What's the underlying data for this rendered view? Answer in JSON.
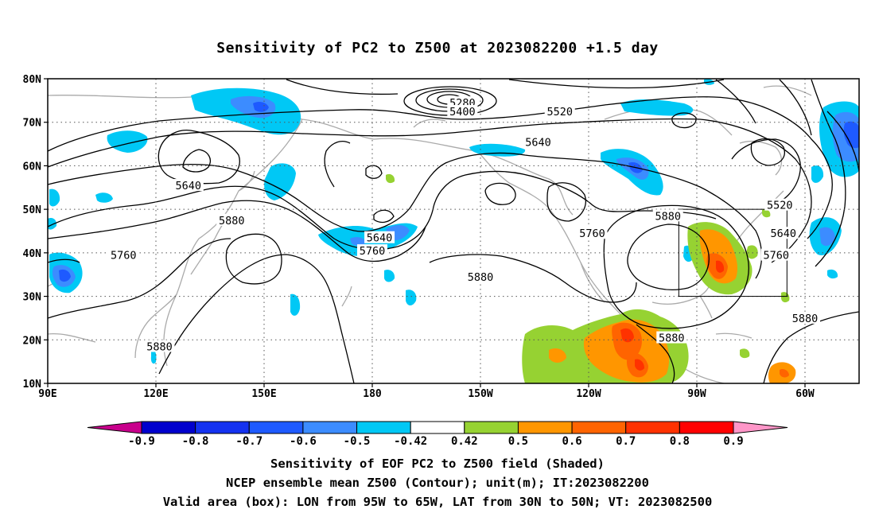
{
  "title": "Sensitivity of PC2 to Z500 at 2023082200 +1.5 day",
  "lat_ticks": [
    {
      "value": 10,
      "label": "10N"
    },
    {
      "value": 20,
      "label": "20N"
    },
    {
      "value": 30,
      "label": "30N"
    },
    {
      "value": 40,
      "label": "40N"
    },
    {
      "value": 50,
      "label": "50N"
    },
    {
      "value": 60,
      "label": "60N"
    },
    {
      "value": 70,
      "label": "70N"
    },
    {
      "value": 80,
      "label": "80N"
    }
  ],
  "lon_ticks": [
    {
      "value": 90,
      "label": "90E"
    },
    {
      "value": 120,
      "label": "120E"
    },
    {
      "value": 150,
      "label": "150E"
    },
    {
      "value": 180,
      "label": "180"
    },
    {
      "value": 210,
      "label": "150W"
    },
    {
      "value": 240,
      "label": "120W"
    },
    {
      "value": 270,
      "label": "90W"
    },
    {
      "value": 300,
      "label": "60W"
    }
  ],
  "contour_labels": [
    {
      "text": "5280",
      "lon": 205,
      "lat": 74.5
    },
    {
      "text": "5400",
      "lon": 205,
      "lat": 72.5
    },
    {
      "text": "5520",
      "lon": 232,
      "lat": 72.5
    },
    {
      "text": "5640",
      "lon": 226,
      "lat": 65.5
    },
    {
      "text": "5640",
      "lon": 129,
      "lat": 55.5
    },
    {
      "text": "5880",
      "lon": 141,
      "lat": 47.5
    },
    {
      "text": "5640",
      "lon": 182,
      "lat": 43.5
    },
    {
      "text": "5760",
      "lon": 180,
      "lat": 40.5
    },
    {
      "text": "5760",
      "lon": 111,
      "lat": 39.5
    },
    {
      "text": "5880",
      "lon": 210,
      "lat": 34.5
    },
    {
      "text": "5760",
      "lon": 241,
      "lat": 44.5
    },
    {
      "text": "5880",
      "lon": 262,
      "lat": 48.5
    },
    {
      "text": "5520",
      "lon": 293,
      "lat": 51
    },
    {
      "text": "5640",
      "lon": 294,
      "lat": 44.5
    },
    {
      "text": "5760",
      "lon": 292,
      "lat": 39.5
    },
    {
      "text": "5880",
      "lon": 300,
      "lat": 25
    },
    {
      "text": "5880",
      "lon": 121,
      "lat": 18.5
    },
    {
      "text": "5880",
      "lon": 263,
      "lat": 20.5
    }
  ],
  "valid_box": {
    "lon_min": 265,
    "lon_max": 295,
    "lat_min": 30,
    "lat_max": 50
  },
  "colorbar": {
    "labels": [
      "-0.9",
      "-0.8",
      "-0.7",
      "-0.6",
      "-0.5",
      "-0.42",
      "0.42",
      "0.5",
      "0.6",
      "0.7",
      "0.8",
      "0.9"
    ],
    "colors": [
      "#c8008c",
      "#0000cd",
      "#1432f0",
      "#1e5aff",
      "#3c8cff",
      "#00c8f5",
      "#ffffff",
      "#96d232",
      "#ff9600",
      "#ff6400",
      "#ff3200",
      "#ff0000",
      "#ff96c8"
    ]
  },
  "caption_line1": "Sensitivity of EOF PC2 to Z500 field (Shaded)",
  "caption_line2": "NCEP ensemble mean Z500 (Contour); unit(m); IT:2023082200",
  "caption_line3": "Valid area (box): LON from 95W to 65W, LAT from 30N to 50N; VT: 2023082500"
}
